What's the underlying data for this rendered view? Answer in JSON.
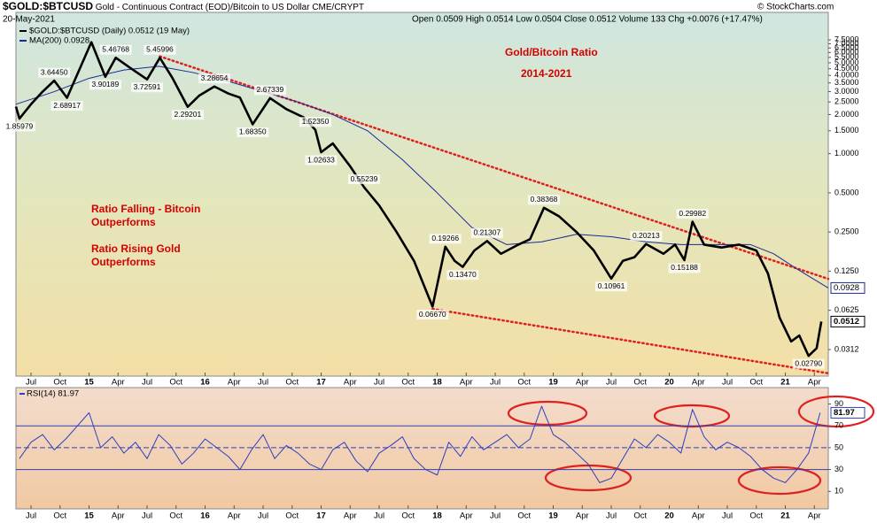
{
  "header": {
    "symbol": "$GOLD:$BTCUSD",
    "description": "Gold - Continuous Contract (EOD)/Bitcoin to US Dollar CME/CRYPT",
    "date": "20-May-2021",
    "quote": "Open 0.0509  High 0.0514  Low 0.0504  Close 0.0512  Volume 133  Chg +0.0076 (+17.47%)",
    "copyright": "© StockCharts.com"
  },
  "chart_data": [
    {
      "type": "line",
      "log_scale": true,
      "xlim": [
        2014.37,
        2021.37
      ],
      "ylim": [
        0.0195,
        12.2
      ],
      "xticks": [
        {
          "value": 2014.5,
          "label": "Jul"
        },
        {
          "value": 2014.75,
          "label": "Oct"
        },
        {
          "value": 2015,
          "label": "15"
        },
        {
          "value": 2015.25,
          "label": "Apr"
        },
        {
          "value": 2015.5,
          "label": "Jul"
        },
        {
          "value": 2015.75,
          "label": "Oct"
        },
        {
          "value": 2016,
          "label": "16"
        },
        {
          "value": 2016.25,
          "label": "Apr"
        },
        {
          "value": 2016.5,
          "label": "Jul"
        },
        {
          "value": 2016.75,
          "label": "Oct"
        },
        {
          "value": 2017,
          "label": "17"
        },
        {
          "value": 2017.25,
          "label": "Apr"
        },
        {
          "value": 2017.5,
          "label": "Jul"
        },
        {
          "value": 2017.75,
          "label": "Oct"
        },
        {
          "value": 2018,
          "label": "18"
        },
        {
          "value": 2018.25,
          "label": "Apr"
        },
        {
          "value": 2018.5,
          "label": "Jul"
        },
        {
          "value": 2018.75,
          "label": "Oct"
        },
        {
          "value": 2019,
          "label": "19"
        },
        {
          "value": 2019.25,
          "label": "Apr"
        },
        {
          "value": 2019.5,
          "label": "Jul"
        },
        {
          "value": 2019.75,
          "label": "Oct"
        },
        {
          "value": 2020,
          "label": "20"
        },
        {
          "value": 2020.25,
          "label": "Apr"
        },
        {
          "value": 2020.5,
          "label": "Jul"
        },
        {
          "value": 2020.75,
          "label": "Oct"
        },
        {
          "value": 2021,
          "label": "21"
        },
        {
          "value": 2021.25,
          "label": "Apr"
        }
      ],
      "yticks": [
        {
          "value": 7.5,
          "label": "7.5000"
        },
        {
          "value": 7,
          "label": "7.0000"
        },
        {
          "value": 6.5,
          "label": "6.5000"
        },
        {
          "value": 6,
          "label": "6.0000"
        },
        {
          "value": 5.5,
          "label": "5.5000"
        },
        {
          "value": 5,
          "label": "5.0000"
        },
        {
          "value": 4.5,
          "label": "4.5000"
        },
        {
          "value": 4,
          "label": "4.0000"
        },
        {
          "value": 3.5,
          "label": "3.5000"
        },
        {
          "value": 3,
          "label": "3.0000"
        },
        {
          "value": 2.5,
          "label": "2.5000"
        },
        {
          "value": 2,
          "label": "2.0000"
        },
        {
          "value": 1.5,
          "label": "1.5000"
        },
        {
          "value": 1,
          "label": "1.0000"
        },
        {
          "value": 0.5,
          "label": "0.5000"
        },
        {
          "value": 0.25,
          "label": "0.2500"
        },
        {
          "value": 0.125,
          "label": "0.1250"
        },
        {
          "value": 0.0625,
          "label": "0.0625"
        },
        {
          "value": 0.0312,
          "label": "0.0312"
        }
      ],
      "series": [
        {
          "name": "$GOLD:$BTCUSD (Daily) 0.0512 (19 May)",
          "color": "#000000",
          "x": [
            2014.37,
            2014.4,
            2014.5,
            2014.6,
            2014.7,
            2014.81,
            2014.92,
            2015.02,
            2015.14,
            2015.23,
            2015.35,
            2015.5,
            2015.61,
            2015.72,
            2015.85,
            2015.95,
            2016.08,
            2016.2,
            2016.3,
            2016.41,
            2016.56,
            2016.7,
            2016.85,
            2016.95,
            2017.0,
            2017.1,
            2017.25,
            2017.37,
            2017.5,
            2017.65,
            2017.8,
            2017.96,
            2018.07,
            2018.15,
            2018.22,
            2018.32,
            2018.43,
            2018.55,
            2018.7,
            2018.8,
            2018.92,
            2019.05,
            2019.2,
            2019.35,
            2019.5,
            2019.6,
            2019.7,
            2019.8,
            2019.95,
            2020.05,
            2020.13,
            2020.2,
            2020.3,
            2020.45,
            2020.6,
            2020.75,
            2020.85,
            2020.95,
            2021.05,
            2021.12,
            2021.2,
            2021.27,
            2021.31
          ],
          "values": [
            2.3,
            1.85979,
            2.4,
            3.0,
            3.6445,
            2.68917,
            4.5,
            7.2,
            3.90189,
            5.46768,
            4.6,
            3.72591,
            5.45996,
            3.8,
            2.29201,
            2.8,
            3.28654,
            2.9,
            2.7,
            1.6835,
            2.67339,
            2.2,
            1.9,
            1.5235,
            1.02633,
            1.2,
            0.8,
            0.55239,
            0.4,
            0.25,
            0.15,
            0.0667,
            0.19266,
            0.15,
            0.1347,
            0.18,
            0.21307,
            0.17,
            0.2,
            0.22,
            0.38368,
            0.33,
            0.25,
            0.18,
            0.10961,
            0.15,
            0.16,
            0.20213,
            0.17,
            0.2,
            0.15188,
            0.29982,
            0.2,
            0.19,
            0.2,
            0.18,
            0.12,
            0.055,
            0.036,
            0.04,
            0.0279,
            0.032,
            0.0512
          ],
          "value_labels": [
            null,
            "1.85979",
            null,
            null,
            "3.64450",
            "2.68917",
            null,
            null,
            "3.90189",
            "5.46768",
            null,
            "3.72591",
            "5.45996",
            null,
            "2.29201",
            null,
            "3.28654",
            null,
            null,
            "1.68350",
            "2.67339",
            null,
            null,
            "1.52350",
            "1.02633",
            null,
            null,
            "0.55239",
            null,
            null,
            null,
            "0.06670",
            "0.19266",
            null,
            "0.13470",
            null,
            "0.21307",
            null,
            null,
            null,
            "0.38368",
            null,
            null,
            null,
            "0.10961",
            null,
            null,
            "0.20213",
            null,
            null,
            "0.15188",
            "0.29982",
            null,
            null,
            null,
            null,
            null,
            null,
            null,
            null,
            "0.02790",
            null,
            null
          ]
        },
        {
          "name": "MA(200) 0.0928",
          "color": "#1a2a9a",
          "x": [
            2014.37,
            2014.7,
            2015.0,
            2015.3,
            2015.6,
            2015.9,
            2016.2,
            2016.5,
            2016.8,
            2017.1,
            2017.4,
            2017.7,
            2018.0,
            2018.3,
            2018.6,
            2018.9,
            2019.2,
            2019.5,
            2019.8,
            2020.1,
            2020.4,
            2020.7,
            2020.9,
            2021.1,
            2021.37
          ],
          "values": [
            2.4,
            3.0,
            3.8,
            4.4,
            4.7,
            4.2,
            3.6,
            3.0,
            2.5,
            2.0,
            1.5,
            0.9,
            0.5,
            0.27,
            0.2,
            0.21,
            0.24,
            0.23,
            0.21,
            0.2,
            0.2,
            0.2,
            0.17,
            0.13,
            0.0928
          ]
        }
      ],
      "trendlines": [
        {
          "x": [
            2015.61,
            2021.37
          ],
          "values": [
            5.6,
            0.109
          ]
        },
        {
          "x": [
            2017.96,
            2021.37
          ],
          "values": [
            0.064,
            0.0205
          ]
        }
      ],
      "trendline_color": "#e02020",
      "annotations": [
        "Gold/Bitcoin Ratio",
        "2014-2021",
        "Ratio Falling - Bitcoin",
        "Outperforms",
        "Ratio Rising Gold",
        "Outperforms"
      ]
    },
    {
      "type": "line",
      "title": "RSI(14) 81.97",
      "xlim": [
        2014.37,
        2021.37
      ],
      "ylim": [
        -6,
        105
      ],
      "yticks": [
        90,
        70,
        50,
        30,
        10
      ],
      "reference_lines": [
        {
          "value": 70
        },
        {
          "value": 50,
          "dashed": true
        },
        {
          "value": 30
        }
      ],
      "series": [
        {
          "name": "RSI(14)",
          "color": "#2c3fc0",
          "x": [
            2014.4,
            2014.5,
            2014.6,
            2014.7,
            2014.8,
            2014.9,
            2015.0,
            2015.1,
            2015.2,
            2015.3,
            2015.4,
            2015.5,
            2015.6,
            2015.7,
            2015.8,
            2015.9,
            2016.0,
            2016.1,
            2016.2,
            2016.3,
            2016.4,
            2016.5,
            2016.6,
            2016.7,
            2016.8,
            2016.9,
            2017.0,
            2017.1,
            2017.2,
            2017.3,
            2017.4,
            2017.5,
            2017.6,
            2017.7,
            2017.8,
            2017.9,
            2018.0,
            2018.1,
            2018.2,
            2018.3,
            2018.4,
            2018.5,
            2018.6,
            2018.7,
            2018.8,
            2018.9,
            2019.0,
            2019.1,
            2019.2,
            2019.3,
            2019.4,
            2019.5,
            2019.6,
            2019.7,
            2019.8,
            2019.9,
            2020.0,
            2020.1,
            2020.2,
            2020.3,
            2020.4,
            2020.5,
            2020.6,
            2020.7,
            2020.8,
            2020.9,
            2021.0,
            2021.1,
            2021.2,
            2021.3
          ],
          "values": [
            40,
            55,
            62,
            48,
            58,
            70,
            82,
            50,
            60,
            45,
            55,
            40,
            62,
            52,
            35,
            45,
            58,
            50,
            42,
            30,
            48,
            62,
            40,
            52,
            45,
            35,
            30,
            48,
            55,
            38,
            28,
            45,
            52,
            60,
            40,
            30,
            25,
            55,
            42,
            60,
            48,
            55,
            62,
            50,
            58,
            88,
            62,
            55,
            45,
            35,
            18,
            22,
            40,
            58,
            50,
            62,
            55,
            45,
            85,
            60,
            48,
            55,
            50,
            42,
            30,
            22,
            18,
            30,
            45,
            81.97
          ]
        }
      ]
    }
  ]
}
